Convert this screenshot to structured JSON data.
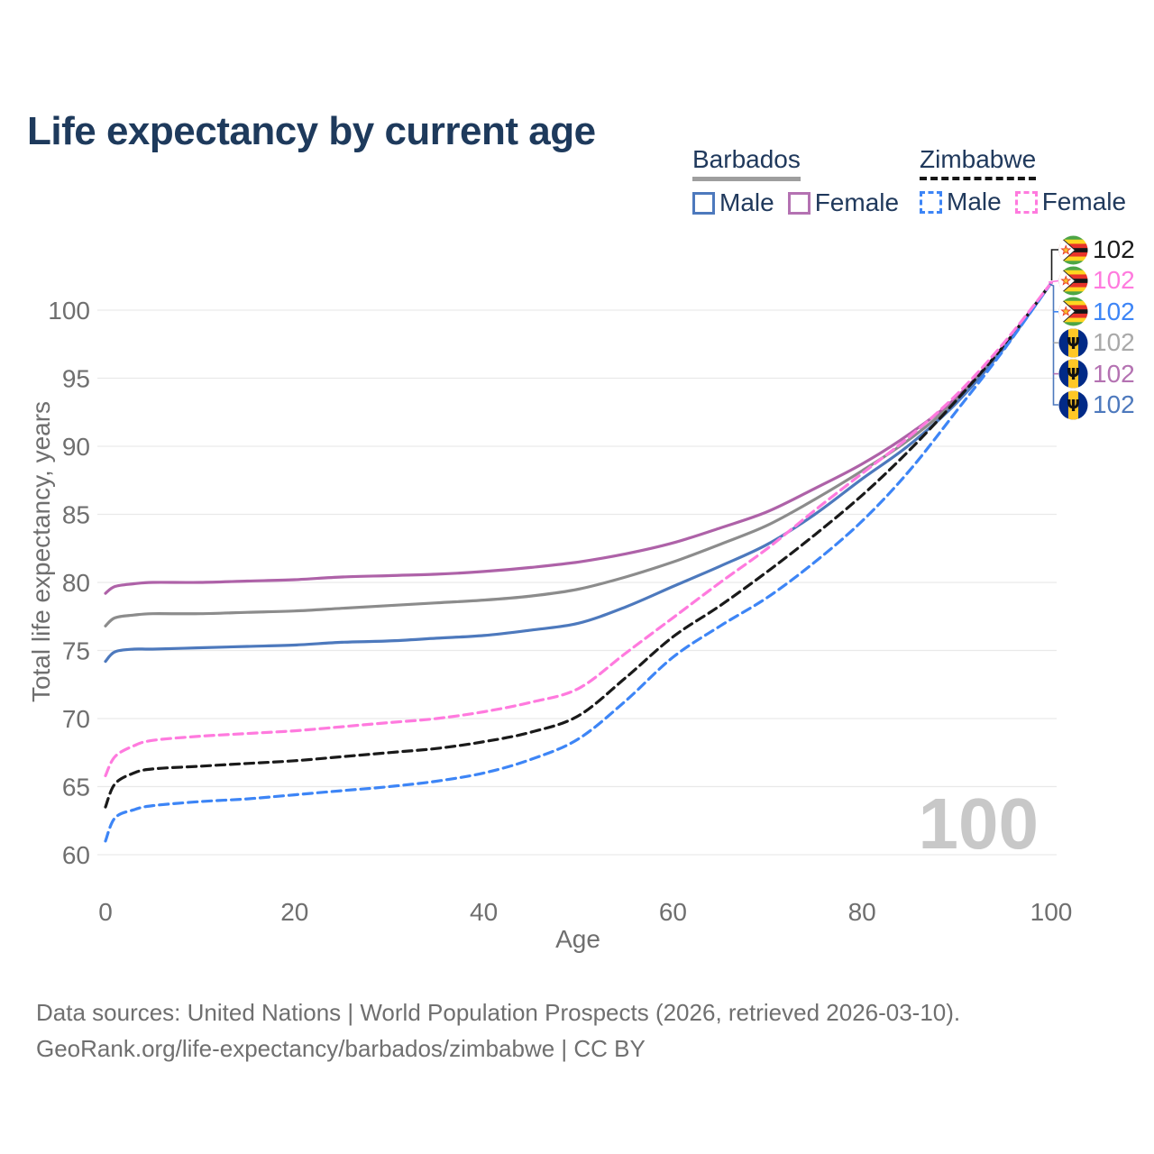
{
  "page": {
    "title": "Life expectancy by current age",
    "footer": {
      "line1": "Data sources: United Nations | World Population Prospects (2026, retrieved 2026-03-10).",
      "line2": "GeoRank.org/life-expectancy/barbados/zimbabwe | CC BY"
    }
  },
  "legend": {
    "groups": [
      {
        "name": "Barbados",
        "sample_color": "#9e9e9e",
        "dashed": false,
        "items": [
          {
            "label": "Male",
            "color": "#4d79bd",
            "dashed": false
          },
          {
            "label": "Female",
            "color": "#b472b2",
            "dashed": false
          }
        ]
      },
      {
        "name": "Zimbabwe",
        "sample_color": "#161616",
        "dashed": true,
        "items": [
          {
            "label": "Male",
            "color": "#3d85f6",
            "dashed": true
          },
          {
            "label": "Female",
            "color": "#ff7ade",
            "dashed": true
          }
        ]
      }
    ]
  },
  "chart_data": {
    "type": "line",
    "title": "Life expectancy by current age",
    "xlabel": "Age",
    "ylabel": "Total life expectancy, years",
    "xlim": [
      0,
      100
    ],
    "ylim": [
      60,
      102
    ],
    "xticks": [
      0,
      20,
      40,
      60,
      80,
      100
    ],
    "yticks": [
      60,
      65,
      70,
      75,
      80,
      85,
      90,
      95,
      100
    ],
    "grid": "horizontal-only",
    "legend_position": "top-right",
    "watermark_age": "100",
    "x": [
      0,
      1,
      3,
      5,
      10,
      15,
      20,
      25,
      30,
      35,
      40,
      45,
      50,
      55,
      60,
      65,
      70,
      75,
      80,
      85,
      90,
      95,
      100
    ],
    "series": [
      {
        "name": "Barbados Female",
        "country": "Barbados",
        "sex": "Female",
        "color": "#ae62a8",
        "dashed": false,
        "values": [
          79.2,
          79.7,
          79.9,
          80.0,
          80.0,
          80.1,
          80.2,
          80.4,
          80.5,
          80.6,
          80.8,
          81.1,
          81.5,
          82.1,
          82.9,
          84.0,
          85.2,
          86.9,
          88.7,
          90.9,
          93.6,
          97.4,
          102
        ]
      },
      {
        "name": "Barbados Total",
        "country": "Barbados",
        "sex": "Total",
        "color": "#8c8c8c",
        "dashed": false,
        "values": [
          76.8,
          77.4,
          77.6,
          77.7,
          77.7,
          77.8,
          77.9,
          78.1,
          78.3,
          78.5,
          78.7,
          79.0,
          79.5,
          80.4,
          81.5,
          82.8,
          84.2,
          86.1,
          88.2,
          90.5,
          93.4,
          97.3,
          102
        ]
      },
      {
        "name": "Barbados Male",
        "country": "Barbados",
        "sex": "Male",
        "color": "#4d79bd",
        "dashed": false,
        "values": [
          74.2,
          74.9,
          75.1,
          75.1,
          75.2,
          75.3,
          75.4,
          75.6,
          75.7,
          75.9,
          76.1,
          76.5,
          77.0,
          78.2,
          79.7,
          81.2,
          82.8,
          85.0,
          87.6,
          90.1,
          93.2,
          97.2,
          102
        ]
      },
      {
        "name": "Zimbabwe Total",
        "country": "Zimbabwe",
        "sex": "Total",
        "color": "#1a1a1a",
        "dashed": true,
        "values": [
          63.5,
          65.2,
          66.0,
          66.3,
          66.5,
          66.7,
          66.9,
          67.2,
          67.5,
          67.8,
          68.3,
          69.0,
          70.2,
          73.0,
          76.0,
          78.3,
          80.8,
          83.5,
          86.4,
          89.7,
          93.4,
          97.4,
          102
        ]
      },
      {
        "name": "Zimbabwe Male",
        "country": "Zimbabwe",
        "sex": "Male",
        "color": "#3d85f6",
        "dashed": true,
        "values": [
          61.0,
          62.7,
          63.3,
          63.6,
          63.9,
          64.1,
          64.4,
          64.7,
          65.0,
          65.4,
          66.0,
          67.0,
          68.5,
          71.3,
          74.5,
          76.8,
          78.9,
          81.5,
          84.5,
          88.2,
          92.6,
          97.1,
          102
        ]
      },
      {
        "name": "Zimbabwe Female",
        "country": "Zimbabwe",
        "sex": "Female",
        "color": "#ff7ade",
        "dashed": true,
        "values": [
          65.8,
          67.2,
          68.0,
          68.4,
          68.7,
          68.9,
          69.1,
          69.4,
          69.7,
          70.0,
          70.5,
          71.2,
          72.2,
          74.8,
          77.4,
          80.0,
          82.5,
          85.3,
          88.0,
          90.7,
          93.8,
          97.6,
          102
        ]
      }
    ]
  },
  "end_labels": [
    {
      "flag": "zimbabwe",
      "series": "Zimbabwe Total",
      "value": "102",
      "color": "#1a1a1a"
    },
    {
      "flag": "zimbabwe",
      "series": "Zimbabwe Female",
      "value": "102",
      "color": "#ff7ade"
    },
    {
      "flag": "zimbabwe",
      "series": "Zimbabwe Male",
      "value": "102",
      "color": "#3d85f6"
    },
    {
      "flag": "barbados",
      "series": "Barbados Total",
      "value": "102",
      "color": "#a9a9a9"
    },
    {
      "flag": "barbados",
      "series": "Barbados Female",
      "value": "102",
      "color": "#b472b2"
    },
    {
      "flag": "barbados",
      "series": "Barbados Male",
      "value": "102",
      "color": "#4d79bd"
    }
  ],
  "colors": {
    "title": "#1e3a5c",
    "legend_text": "#20395c",
    "axis_text": "#6f6f6f",
    "grid": "#e9e9e9",
    "watermark": "#c8c8c8",
    "flag_zimbabwe": {
      "green": "#4CA546",
      "yellow": "#FFD520",
      "red": "#E8332A",
      "black": "#151515",
      "white": "#ffffff",
      "star": "#f5c02c"
    },
    "flag_barbados": {
      "blue": "#012a87",
      "yellow": "#FFC726",
      "trident": "#111111"
    }
  }
}
